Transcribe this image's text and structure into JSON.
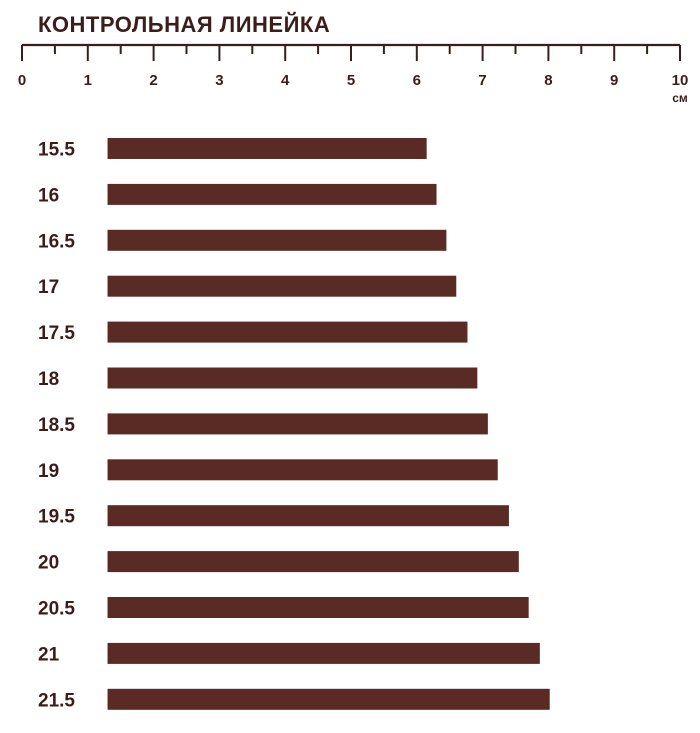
{
  "chart_data": {
    "type": "bar",
    "orientation": "horizontal",
    "title": "КОНТРОЛЬНАЯ ЛИНЕЙКА",
    "axis": {
      "ticks": [
        "0",
        "1",
        "2",
        "3",
        "4",
        "5",
        "6",
        "7",
        "8",
        "9",
        "10"
      ],
      "unit": "см",
      "range": [
        0,
        10
      ],
      "minor_ticks": true
    },
    "categories": [
      "15.5",
      "16",
      "16.5",
      "17",
      "17.5",
      "18",
      "18.5",
      "19",
      "19.5",
      "20",
      "20.5",
      "21",
      "21.5"
    ],
    "series": [
      {
        "bar_start": 1.3,
        "values": [
          6.15,
          6.3,
          6.45,
          6.6,
          6.77,
          6.92,
          7.08,
          7.23,
          7.4,
          7.55,
          7.7,
          7.87,
          8.02
        ]
      }
    ],
    "grid": false,
    "legend": "none"
  },
  "colors": {
    "bar": "#5a2a24",
    "text": "#3b1e1a",
    "background": "#ffffff"
  }
}
